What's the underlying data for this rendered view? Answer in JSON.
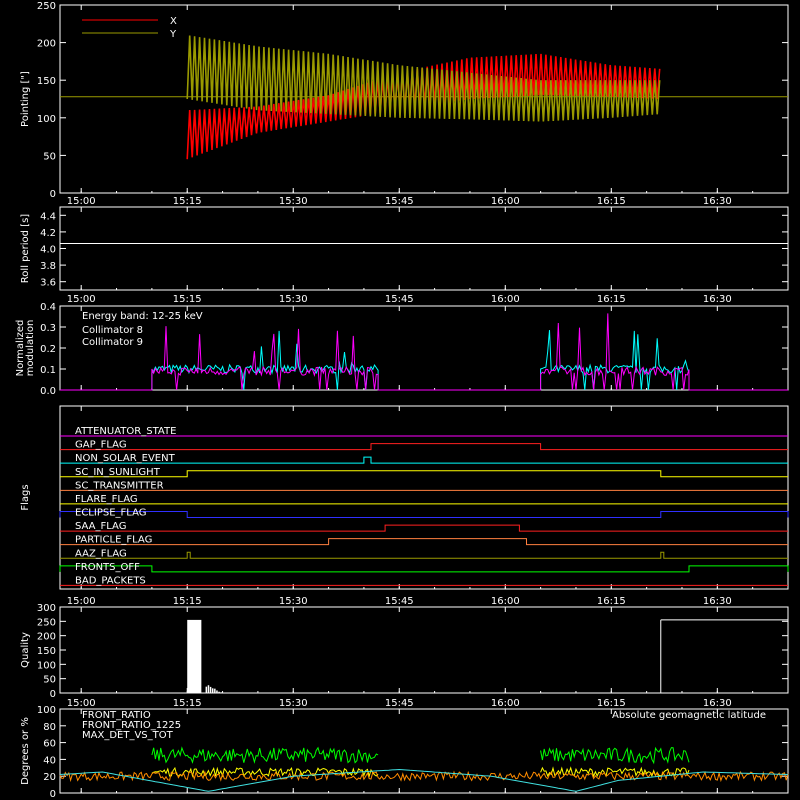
{
  "chart_data": [
    {
      "type": "line",
      "ylabel": "Pointing [\"]",
      "ylim": [
        0,
        250
      ],
      "yticks": [
        0,
        50,
        100,
        150,
        200,
        250
      ],
      "xlim": [
        "14:57",
        "16:40"
      ],
      "xticks": [
        "15:00",
        "15:15",
        "15:30",
        "15:45",
        "16:00",
        "16:15",
        "16:30"
      ],
      "legend": [
        {
          "name": "X",
          "color": "#ff0000"
        },
        {
          "name": "Y",
          "color": "#9a9a00"
        }
      ],
      "reference_line": 128,
      "series": [
        {
          "name": "X",
          "color": "#ff0000",
          "x": [
            "15:15",
            "15:25",
            "15:35",
            "15:45",
            "15:55",
            "16:05",
            "16:15",
            "16:22"
          ],
          "y_low": [
            45,
            80,
            95,
            110,
            125,
            130,
            128,
            125
          ],
          "y_high": [
            110,
            115,
            130,
            160,
            180,
            185,
            170,
            165
          ]
        },
        {
          "name": "Y",
          "color": "#9a9a00",
          "x": [
            "15:15",
            "15:25",
            "15:35",
            "15:45",
            "15:55",
            "16:05",
            "16:15",
            "16:22"
          ],
          "y_low": [
            125,
            110,
            105,
            100,
            98,
            95,
            100,
            105
          ],
          "y_high": [
            210,
            195,
            185,
            170,
            160,
            150,
            150,
            150
          ]
        }
      ]
    },
    {
      "type": "line",
      "ylabel": "Roll period [s]",
      "ylim": [
        3.5,
        4.5
      ],
      "yticks": [
        "3.6",
        "3.8",
        "4.0",
        "4.2",
        "4.4"
      ],
      "xticks": [
        "15:00",
        "15:15",
        "15:30",
        "15:45",
        "16:00",
        "16:15",
        "16:30"
      ],
      "series": [
        {
          "name": "",
          "color": "#ffffff",
          "x": [
            "15:15",
            "16:22"
          ],
          "y": [
            4.06,
            4.06
          ]
        }
      ]
    },
    {
      "type": "line",
      "ylabel": "Normalized modulation",
      "ylim": [
        0,
        0.4
      ],
      "yticks": [
        "0.0",
        "0.1",
        "0.2",
        "0.3",
        "0.4"
      ],
      "xticks": [
        "15:00",
        "15:15",
        "15:30",
        "15:45",
        "16:00",
        "16:15",
        "16:30"
      ],
      "annotations": [
        "Energy band: 12-25 keV"
      ],
      "legend": [
        {
          "name": "Collimator 8",
          "color": "#00ffff"
        },
        {
          "name": "Collimator 9",
          "color": "#ff00ff"
        }
      ],
      "series": [
        {
          "name": "Collimator 8",
          "color": "#00ffff",
          "segments": [
            [
              "15:10",
              "15:42"
            ],
            [
              "16:05",
              "16:26"
            ]
          ],
          "typical": 0.1,
          "max": 0.29
        },
        {
          "name": "Collimator 9",
          "color": "#ff00ff",
          "segments": [
            [
              "15:10",
              "15:42"
            ],
            [
              "16:05",
              "16:26"
            ]
          ],
          "typical": 0.09,
          "max": 0.4
        }
      ]
    },
    {
      "type": "line",
      "ylabel": "Flags",
      "xticks": [
        "15:00",
        "15:15",
        "15:30",
        "15:45",
        "16:00",
        "16:15",
        "16:30"
      ],
      "flags": [
        {
          "name": "ATTENUATOR_STATE",
          "color": "#ff00ff",
          "on": []
        },
        {
          "name": "GAP_FLAG",
          "color": "#ff2020",
          "on": [
            [
              "15:41",
              "16:05"
            ]
          ]
        },
        {
          "name": "NON_SOLAR_EVENT",
          "color": "#00ffff",
          "on": [
            [
              "15:40",
              "15:41"
            ]
          ]
        },
        {
          "name": "SC_IN_SUNLIGHT",
          "color": "#ffff00",
          "on": [
            [
              "15:15",
              "16:22"
            ]
          ]
        },
        {
          "name": "SC_TRANSMITTER",
          "color": "#ff8040",
          "on": []
        },
        {
          "name": "FLARE_FLAG",
          "color": "#ffff00",
          "on": []
        },
        {
          "name": "ECLIPSE_FLAG",
          "color": "#3030ff",
          "on": [
            [
              "14:57",
              "15:15"
            ],
            [
              "16:22",
              "16:40"
            ]
          ]
        },
        {
          "name": "SAA_FLAG",
          "color": "#ff2020",
          "on": [
            [
              "15:43",
              "16:02"
            ]
          ]
        },
        {
          "name": "PARTICLE_FLAG",
          "color": "#ff8040",
          "on": [
            [
              "15:35",
              "16:03"
            ]
          ]
        },
        {
          "name": "AAZ_FLAG",
          "color": "#9a9a00",
          "on": [
            [
              "15:15",
              "15:15"
            ],
            [
              "16:22",
              "16:22"
            ]
          ]
        },
        {
          "name": "FRONTS_OFF",
          "color": "#00ff00",
          "on": [
            [
              "14:57",
              "15:10"
            ],
            [
              "16:26",
              "16:40"
            ]
          ]
        },
        {
          "name": "BAD_PACKETS",
          "color": "#ff2020",
          "on": []
        }
      ]
    },
    {
      "type": "bar",
      "ylabel": "Quality",
      "ylim": [
        0,
        300
      ],
      "yticks": [
        0,
        50,
        100,
        150,
        200,
        250,
        300
      ],
      "xticks": [
        "15:00",
        "15:15",
        "15:30",
        "15:45",
        "16:00",
        "16:15",
        "16:30"
      ],
      "series": [
        {
          "name": "",
          "color": "#ffffff",
          "x": [
            "15:15",
            "15:16",
            "15:17",
            "15:18",
            "16:22",
            "16:40"
          ],
          "y": [
            255,
            255,
            40,
            15,
            255,
            255
          ]
        }
      ]
    },
    {
      "type": "line",
      "ylabel": "Degrees or %",
      "ylim": [
        0,
        100
      ],
      "yticks": [
        0,
        20,
        40,
        60,
        80,
        100
      ],
      "xticks": [
        "15:00",
        "15:15",
        "15:30",
        "15:45",
        "16:00",
        "16:15",
        "16:30"
      ],
      "legend": [
        {
          "name": "FRONT_RATIO",
          "color": "#ffff00"
        },
        {
          "name": "FRONT_RATIO_1225",
          "color": "#00ff00"
        },
        {
          "name": "MAX_DET_VS_TOT",
          "color": "#ff8c00"
        }
      ],
      "annotations": [
        "Absolute geomagnetic latitude"
      ],
      "series": [
        {
          "name": "FRONT_RATIO",
          "color": "#ffff00",
          "segments": [
            [
              "15:10",
              "15:42"
            ],
            [
              "16:05",
              "16:26"
            ]
          ],
          "typical": 25
        },
        {
          "name": "FRONT_RATIO_1225",
          "color": "#00ff00",
          "segments": [
            [
              "15:10",
              "15:42"
            ],
            [
              "16:05",
              "16:26"
            ]
          ],
          "typical": 45
        },
        {
          "name": "MAX_DET_VS_TOT",
          "color": "#ff8c00",
          "segments": [
            [
              "14:57",
              "16:40"
            ]
          ],
          "typical": 20
        },
        {
          "name": "Absolute geomagnetic latitude",
          "color": "#40e0e0",
          "x": [
            "14:57",
            "15:03",
            "15:18",
            "15:30",
            "15:45",
            "15:58",
            "16:10",
            "16:16",
            "16:28",
            "16:40"
          ],
          "y": [
            22,
            25,
            2,
            20,
            28,
            20,
            2,
            15,
            25,
            22
          ]
        }
      ]
    }
  ]
}
